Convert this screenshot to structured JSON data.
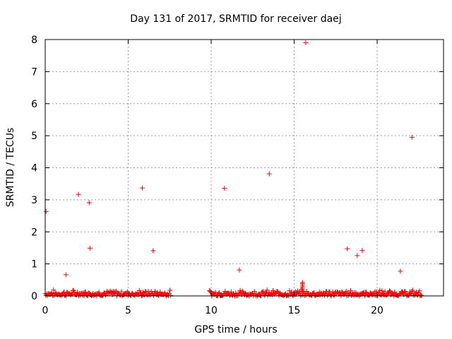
{
  "chart_data": {
    "type": "scatter",
    "title": "Day 131 of 2017, SRMTID for receiver daej",
    "xlabel": "GPS time / hours",
    "ylabel": "SRMTID / TECUs",
    "xlim": [
      0,
      24
    ],
    "ylim": [
      0,
      8
    ],
    "xticks": [
      "0",
      "5",
      "10",
      "15",
      "20"
    ],
    "xtick_values": [
      0,
      5,
      10,
      15,
      20
    ],
    "yticks": [
      "0",
      "1",
      "2",
      "3",
      "4",
      "5",
      "6",
      "7",
      "8"
    ],
    "ytick_values": [
      0,
      1,
      2,
      3,
      4,
      5,
      6,
      7,
      8
    ],
    "grid": true,
    "marker": "+",
    "marker_color": "#ff0000",
    "baseline_segments": [
      {
        "x_start": 0.0,
        "x_end": 7.6,
        "y_min": 0.0,
        "y_max": 0.2
      },
      {
        "x_start": 9.9,
        "x_end": 22.7,
        "y_min": 0.0,
        "y_max": 0.2
      }
    ],
    "baseline_bump": {
      "x": 15.5,
      "y_values": [
        0.15,
        0.22,
        0.28,
        0.33,
        0.38,
        0.42
      ]
    },
    "outliers": [
      {
        "x": 0.05,
        "y": 2.63
      },
      {
        "x": 1.25,
        "y": 0.66
      },
      {
        "x": 2.0,
        "y": 3.17
      },
      {
        "x": 2.65,
        "y": 2.91
      },
      {
        "x": 2.7,
        "y": 1.49
      },
      {
        "x": 5.85,
        "y": 3.37
      },
      {
        "x": 6.5,
        "y": 1.41
      },
      {
        "x": 10.8,
        "y": 3.36
      },
      {
        "x": 11.7,
        "y": 0.81
      },
      {
        "x": 13.5,
        "y": 3.81
      },
      {
        "x": 15.7,
        "y": 7.9
      },
      {
        "x": 18.2,
        "y": 1.47
      },
      {
        "x": 18.8,
        "y": 1.26
      },
      {
        "x": 19.1,
        "y": 1.42
      },
      {
        "x": 21.4,
        "y": 0.77
      },
      {
        "x": 22.1,
        "y": 4.95
      }
    ]
  }
}
